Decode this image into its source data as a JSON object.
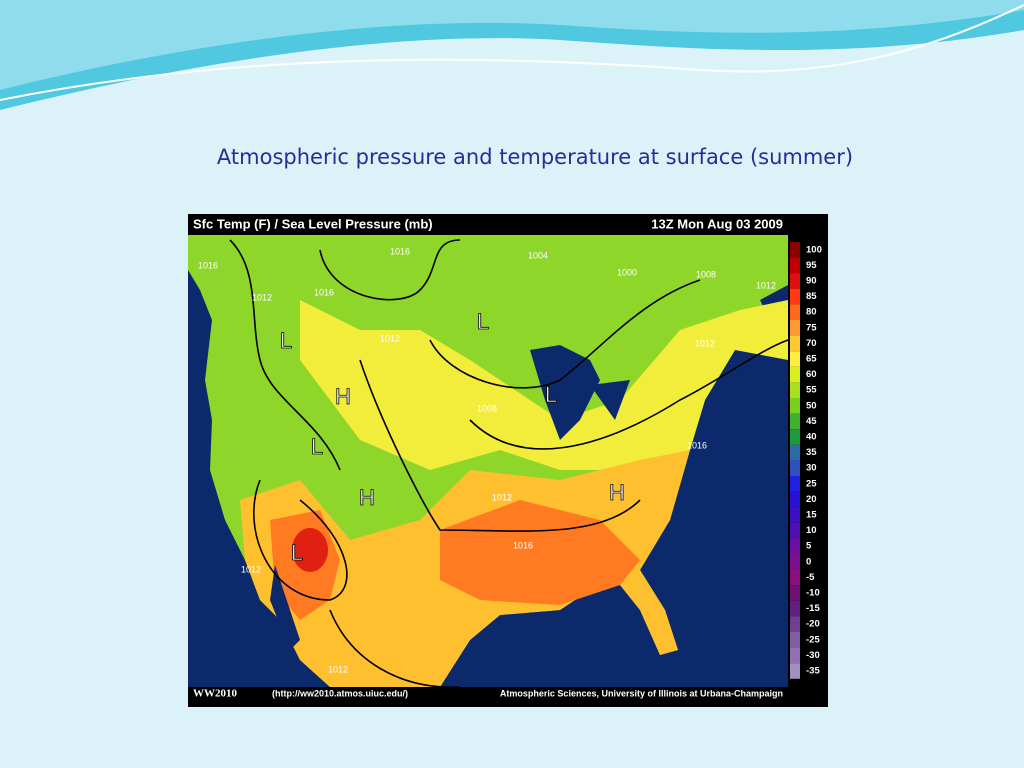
{
  "title": "Atmospheric pressure and temperature at surface (summer)",
  "map": {
    "header_left": "Sfc Temp (F) / Sea Level Pressure (mb)",
    "header_right": "13Z Mon Aug 03 2009",
    "isobar_labels": [
      "1016",
      "1016",
      "1004",
      "1000",
      "1008",
      "1012",
      "1012",
      "1016",
      "1012",
      "1012",
      "1008",
      "1016",
      "1012",
      "1016",
      "1012",
      "1012"
    ],
    "pressure_centers": [
      "L",
      "L",
      "H",
      "L",
      "L",
      "H",
      "H",
      "L"
    ],
    "legend": {
      "labels": [
        100,
        95,
        90,
        85,
        80,
        75,
        70,
        65,
        60,
        55,
        50,
        45,
        40,
        35,
        30,
        25,
        20,
        15,
        10,
        5,
        0,
        -5,
        -10,
        -15,
        -20,
        -25,
        -30,
        -35
      ],
      "colors": [
        "#8b0000",
        "#c00000",
        "#e01010",
        "#ff3a10",
        "#ff6a1a",
        "#ff9a30",
        "#ffc830",
        "#ffee40",
        "#d8f020",
        "#a8e020",
        "#78d020",
        "#40b030",
        "#209a40",
        "#2c6aa8",
        "#3050c0",
        "#2020e0",
        "#2a10d0",
        "#3a10c0",
        "#5010b0",
        "#6a10a0",
        "#7a1090",
        "#8a1080",
        "#701070",
        "#602080",
        "#704090",
        "#8060a0",
        "#9070b0",
        "#a090c0"
      ]
    },
    "footer_left": "WW2010",
    "footer_center": "(http://ww2010.atmos.uiuc.edu/)",
    "footer_right": "Atmospheric Sciences, University of Illinois at Urbana-Champaign"
  }
}
